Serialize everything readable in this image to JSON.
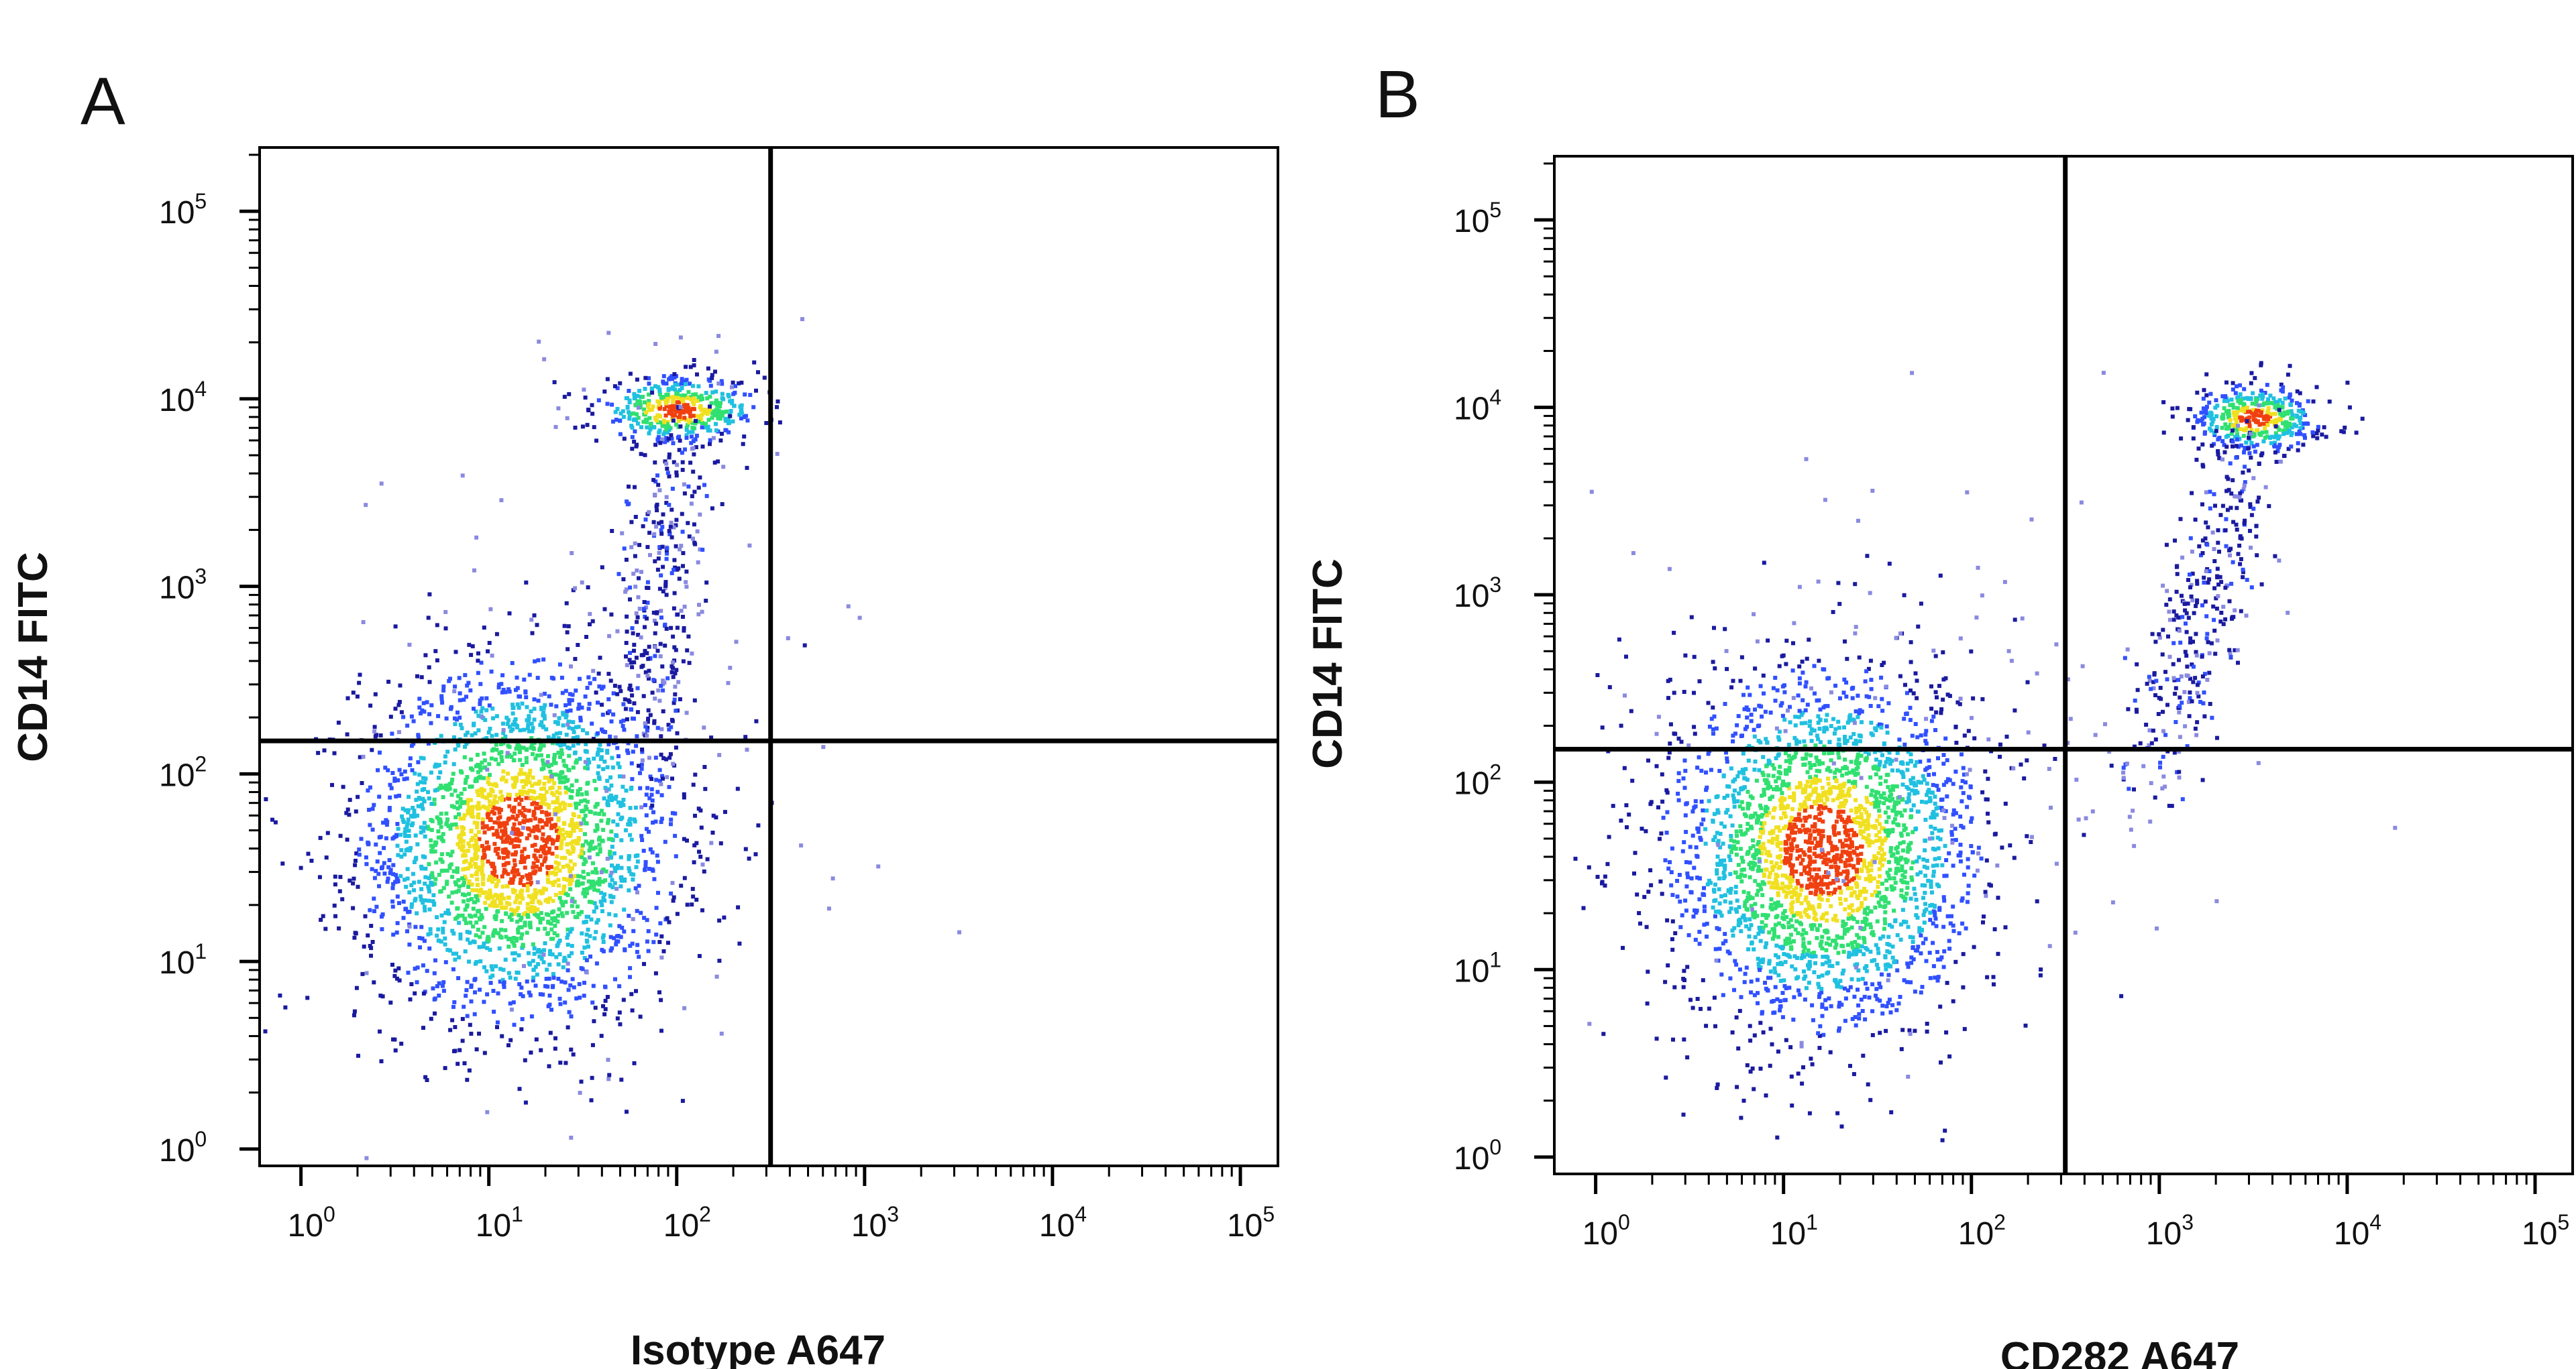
{
  "chart_data": [
    {
      "type": "scatter",
      "panel": "A",
      "xlabel": "Isotype A647",
      "ylabel": "CD14 FITC",
      "x_scale": "log",
      "y_scale": "log",
      "xlim_log10": [
        -0.22,
        5.2
      ],
      "ylim_log10": [
        -0.09,
        5.34
      ],
      "x_ticks": [
        "0",
        "1",
        "2",
        "3",
        "4",
        "5"
      ],
      "y_ticks": [
        "0",
        "1",
        "2",
        "3",
        "4",
        "5"
      ],
      "quadrant_gate": {
        "x": 316,
        "y": 150
      },
      "populations": [
        {
          "name": "CD14- low cluster",
          "center_log10": [
            1.15,
            1.65
          ],
          "spread_log10": [
            0.42,
            0.48
          ],
          "events": 2600
        },
        {
          "name": "CD14+ monocytes",
          "center_log10": [
            2.0,
            3.95
          ],
          "spread_log10": [
            0.22,
            0.09
          ],
          "events": 450
        },
        {
          "name": "bridge",
          "from_log10": [
            1.8,
            2.2
          ],
          "to_log10": [
            2.0,
            3.8
          ],
          "spread_log10": [
            0.12,
            0.05
          ],
          "events": 320
        },
        {
          "name": "sparse background",
          "center_log10": [
            1.6,
            2.4
          ],
          "spread_log10": [
            0.7,
            1.0
          ],
          "events": 120
        }
      ]
    },
    {
      "type": "scatter",
      "panel": "B",
      "xlabel": "CD282 A647",
      "ylabel": "CD14 FITC",
      "x_scale": "log",
      "y_scale": "log",
      "xlim_log10": [
        -0.22,
        5.2
      ],
      "ylim_log10": [
        -0.09,
        5.34
      ],
      "x_ticks": [
        "0",
        "1",
        "2",
        "3",
        "4",
        "5"
      ],
      "y_ticks": [
        "0",
        "1",
        "2",
        "3",
        "4",
        "5"
      ],
      "quadrant_gate": {
        "x": 316,
        "y": 150
      },
      "populations": [
        {
          "name": "CD14- low cluster",
          "center_log10": [
            1.2,
            1.65
          ],
          "spread_log10": [
            0.42,
            0.48
          ],
          "events": 2600
        },
        {
          "name": "CD14+ CD282+ monocytes",
          "center_log10": [
            3.5,
            3.95
          ],
          "spread_log10": [
            0.17,
            0.09
          ],
          "events": 420
        },
        {
          "name": "bridge",
          "from_log10": [
            2.95,
            2.0
          ],
          "to_log10": [
            3.45,
            3.8
          ],
          "spread_log10": [
            0.1,
            0.06
          ],
          "events": 350
        },
        {
          "name": "sparse background",
          "center_log10": [
            2.0,
            2.3
          ],
          "spread_log10": [
            0.8,
            0.8
          ],
          "events": 120
        }
      ]
    }
  ],
  "panels": [
    {
      "letter": "A",
      "xlabel": "Isotype A647",
      "ylabel": "CD14 FITC"
    },
    {
      "letter": "B",
      "xlabel": "CD282 A647",
      "ylabel": "CD14 FITC"
    }
  ],
  "colors": {
    "axis": "#000000",
    "low": "#1a1aa0",
    "blue": "#3050ff",
    "cyan": "#20c0e0",
    "green": "#30e070",
    "yellow": "#f0e020",
    "red": "#f04010",
    "sparse": "#8a8ae0"
  }
}
